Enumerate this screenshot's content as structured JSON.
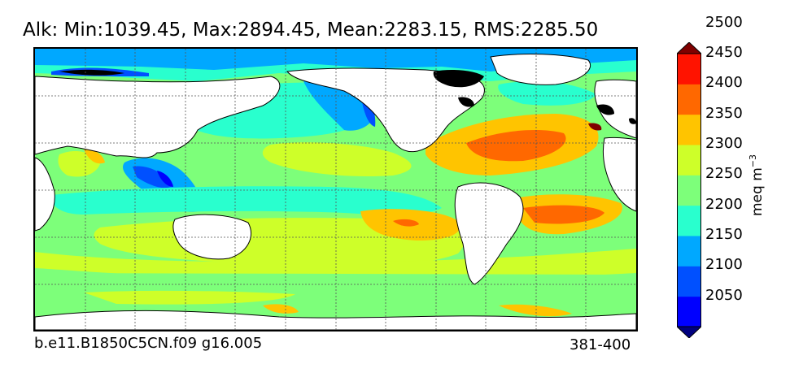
{
  "title": "Alk: Min:1039.45, Max:2894.45, Mean:2283.15, RMS:2285.50",
  "footer": {
    "case_name": "b.e11.B1850C5CN.f09 g16.005",
    "years": "381-400"
  },
  "colorbar": {
    "unit_base": "meq m",
    "unit_exponent": "−3",
    "ticks": [
      "2050",
      "2100",
      "2150",
      "2200",
      "2250",
      "2300",
      "2350",
      "2400",
      "2450",
      "2500"
    ],
    "colors": [
      "#00007f",
      "#0000ff",
      "#0050ff",
      "#00a8ff",
      "#29ffce",
      "#7dff7a",
      "#ceff29",
      "#ffc400",
      "#ff6800",
      "#ff1300",
      "#7f0000"
    ],
    "extend": "both"
  },
  "map": {
    "projection": "cylindrical",
    "gridlines": "dotted",
    "land_color": "#ffffff",
    "missing_color": "#000000",
    "coastline_color": "#000000"
  }
}
